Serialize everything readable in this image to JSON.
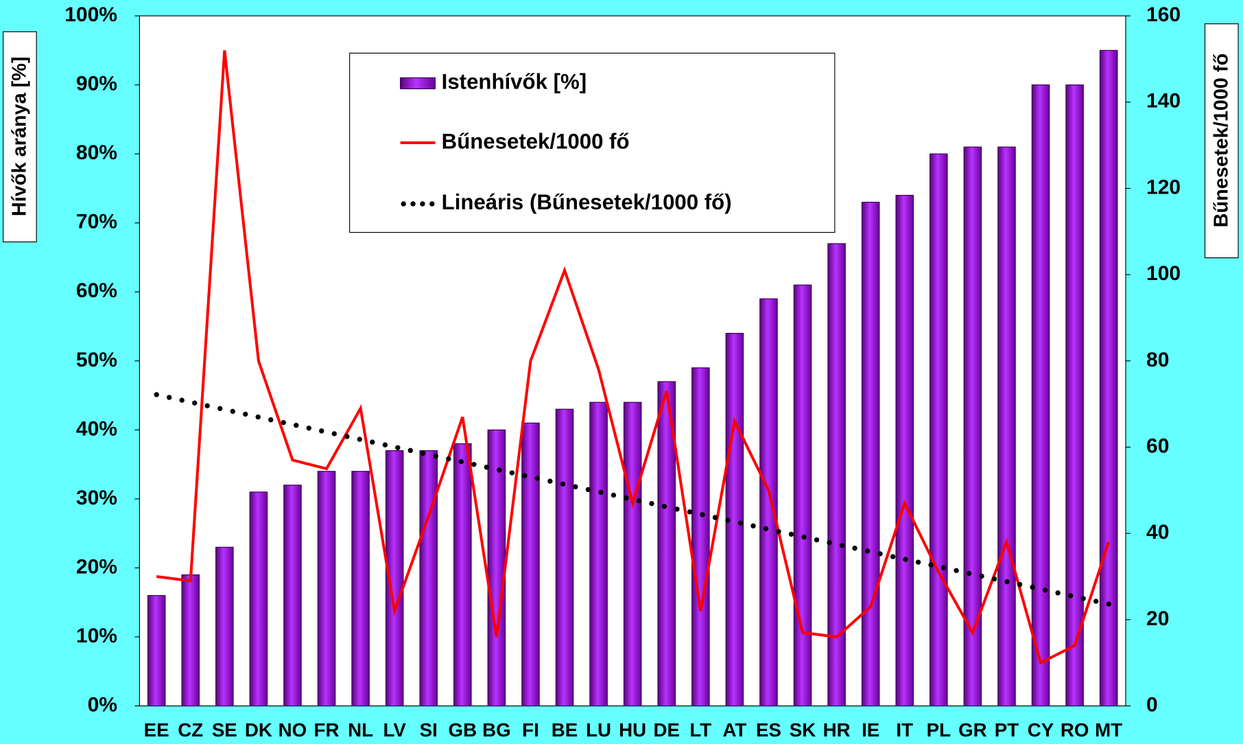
{
  "chart_data": {
    "type": "bar+line",
    "categories": [
      "EE",
      "CZ",
      "SE",
      "DK",
      "NO",
      "FR",
      "NL",
      "LV",
      "SI",
      "GB",
      "BG",
      "FI",
      "BE",
      "LU",
      "HU",
      "DE",
      "LT",
      "AT",
      "ES",
      "SK",
      "HR",
      "IE",
      "IT",
      "PL",
      "GR",
      "PT",
      "CY",
      "RO",
      "MT"
    ],
    "series": [
      {
        "name": "Istenhívők [%]",
        "type": "bar",
        "color": "#9900cc",
        "values": [
          16,
          19,
          23,
          31,
          32,
          34,
          34,
          37,
          37,
          38,
          40,
          41,
          43,
          44,
          44,
          47,
          49,
          54,
          59,
          61,
          67,
          73,
          74,
          80,
          81,
          81,
          90,
          90,
          95
        ]
      },
      {
        "name": "Bűnesetek/1000 fő",
        "type": "line",
        "axis": "y2",
        "color": "#ff0000",
        "values": [
          30,
          29,
          152,
          80,
          57,
          55,
          69,
          22,
          44,
          67,
          16,
          80,
          101,
          78,
          47,
          73,
          22,
          66,
          50,
          17,
          16,
          23,
          47,
          31,
          17,
          38,
          10,
          14,
          38
        ]
      },
      {
        "name": "Lineáris (Bűnesetek/1000 fő)",
        "type": "trend",
        "of": 1,
        "color": "#000000"
      }
    ],
    "ylabel": "Hívők aránya [%]",
    "y2label": "Bűnesetek/1000 fő",
    "ylim": [
      0,
      100
    ],
    "yticks": [
      {
        "value": 0,
        "label": "0%"
      },
      {
        "value": 10,
        "label": "10%"
      },
      {
        "value": 20,
        "label": "20%"
      },
      {
        "value": 30,
        "label": "30%"
      },
      {
        "value": 40,
        "label": "40%"
      },
      {
        "value": 50,
        "label": "50%"
      },
      {
        "value": 60,
        "label": "60%"
      },
      {
        "value": 70,
        "label": "70%"
      },
      {
        "value": 80,
        "label": "80%"
      },
      {
        "value": 90,
        "label": "90%"
      },
      {
        "value": 100,
        "label": "100%"
      }
    ],
    "y2lim": [
      0,
      160
    ],
    "y2ticks": [
      0,
      20,
      40,
      60,
      80,
      100,
      120,
      140,
      160
    ],
    "grid": false,
    "legend": "top"
  }
}
